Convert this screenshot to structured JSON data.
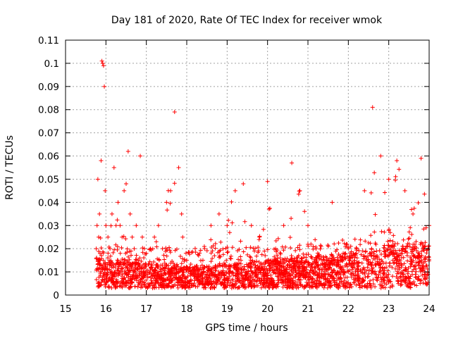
{
  "chart_data": {
    "type": "scatter",
    "title": "Day 181 of 2020, Rate Of TEC Index for receiver wmok",
    "xlabel": "GPS time / hours",
    "ylabel": "ROTI / TECUs",
    "xlim": [
      15,
      24
    ],
    "ylim": [
      0,
      0.11
    ],
    "xticks": [
      "15",
      "16",
      "17",
      "18",
      "19",
      "20",
      "21",
      "22",
      "23",
      "24"
    ],
    "yticks": [
      "0",
      "0.01",
      "0.02",
      "0.03",
      "0.04",
      "0.05",
      "0.06",
      "0.07",
      "0.08",
      "0.09",
      "0.1",
      "0.11"
    ],
    "grid": true,
    "legend": "none",
    "marker": "plus",
    "color": "#ff0000",
    "series": [
      {
        "x": [
          15.76,
          15.78,
          15.8,
          15.82,
          15.84,
          15.86,
          15.88,
          15.9,
          15.92,
          15.94,
          15.96,
          15.98,
          16.0,
          16.05,
          16.1,
          16.15,
          16.2,
          16.25,
          16.3,
          16.35,
          16.4,
          16.45,
          16.5,
          16.55,
          16.6,
          16.65,
          16.7,
          16.75,
          16.8,
          16.85,
          16.9,
          16.95,
          17.0,
          17.1,
          17.2,
          17.3,
          17.4,
          17.5,
          17.6,
          17.7,
          17.8,
          17.9,
          18.0,
          18.2,
          18.4,
          18.6,
          18.8,
          19.0,
          19.2,
          19.4,
          19.6,
          19.8,
          20.0,
          20.2,
          20.4,
          20.6,
          20.8,
          21.0,
          21.2,
          21.4,
          21.6,
          21.8,
          22.0,
          22.2,
          22.4,
          22.6,
          22.8,
          23.0,
          23.2,
          23.4,
          23.6,
          23.8,
          24.0
        ],
        "y": [
          0.02,
          0.03,
          0.05,
          0.025,
          0.035,
          0.015,
          0.058,
          0.101,
          0.1,
          0.099,
          0.09,
          0.045,
          0.03,
          0.025,
          0.02,
          0.035,
          0.055,
          0.03,
          0.04,
          0.03,
          0.025,
          0.045,
          0.048,
          0.062,
          0.035,
          0.025,
          0.02,
          0.03,
          0.015,
          0.06,
          0.025,
          0.02,
          0.018,
          0.02,
          0.025,
          0.03,
          0.02,
          0.04,
          0.045,
          0.079,
          0.055,
          0.025,
          0.015,
          0.012,
          0.015,
          0.03,
          0.035,
          0.03,
          0.045,
          0.048,
          0.03,
          0.025,
          0.049,
          0.02,
          0.03,
          0.057,
          0.045,
          0.03,
          0.02,
          0.015,
          0.04,
          0.015,
          0.02,
          0.018,
          0.045,
          0.081,
          0.06,
          0.05,
          0.058,
          0.045,
          0.035,
          0.059,
          0.03
        ],
        "baseline": [
          0.01,
          0.008,
          0.007,
          0.006,
          0.006,
          0.007,
          0.008,
          0.009,
          0.01,
          0.012,
          0.012
        ]
      }
    ]
  }
}
